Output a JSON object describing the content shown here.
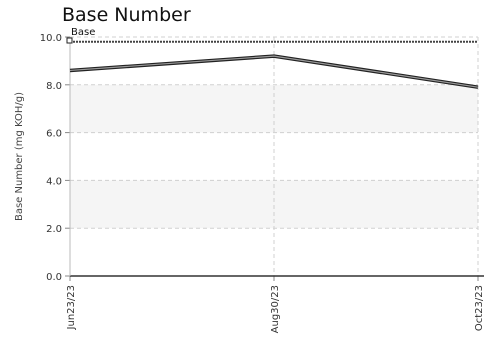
{
  "chart_data": {
    "type": "line",
    "title": "Base Number",
    "ylabel": "Base Number (mg KOH/g)",
    "xlabel": "",
    "ylim": [
      0,
      10
    ],
    "yticks": [
      "0.0",
      "2.0",
      "4.0",
      "6.0",
      "8.0",
      "10.0"
    ],
    "x": [
      "Jun23/23",
      "Aug30/23",
      "Oct23/23"
    ],
    "grid": true,
    "legend_placement": "top-left",
    "series": [
      {
        "name": "Base",
        "values": [
          9.8,
          9.8,
          9.8
        ],
        "color": "#444444",
        "style": "dashed"
      },
      {
        "name": "",
        "values": [
          8.6,
          9.2,
          7.9
        ],
        "color": "#555555",
        "style": "solid"
      }
    ]
  }
}
